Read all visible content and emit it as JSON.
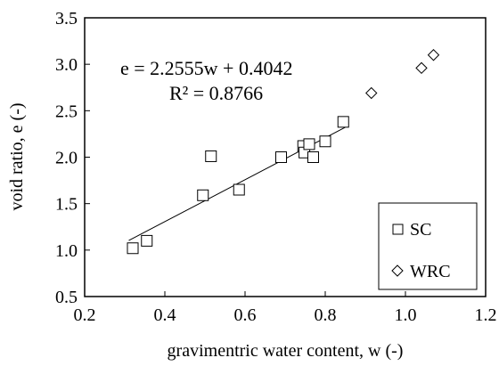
{
  "chart_data": {
    "type": "scatter",
    "title": "",
    "xlabel": "gravimentric water content, w (-)",
    "ylabel": "void ratio, e (-)",
    "xlim": [
      0.2,
      1.2
    ],
    "ylim": [
      0.5,
      3.5
    ],
    "x_ticks": [
      "0.2",
      "0.4",
      "0.6",
      "0.8",
      "1.0",
      "1.2"
    ],
    "y_ticks": [
      "0.5",
      "1.0",
      "1.5",
      "2.0",
      "2.5",
      "3.0",
      "3.5"
    ],
    "grid": false,
    "legend_position": "bottom-right",
    "series": [
      {
        "name": "SC",
        "marker": "square",
        "x": [
          0.32,
          0.355,
          0.495,
          0.515,
          0.585,
          0.69,
          0.745,
          0.748,
          0.76,
          0.77,
          0.8,
          0.845
        ],
        "y": [
          1.02,
          1.1,
          1.59,
          2.01,
          1.65,
          2.0,
          2.12,
          2.05,
          2.14,
          2.0,
          2.17,
          2.38
        ]
      },
      {
        "name": "WRC",
        "marker": "diamond",
        "x": [
          0.915,
          1.04,
          1.07
        ],
        "y": [
          2.69,
          2.96,
          3.1
        ]
      }
    ],
    "trendline": {
      "slope": 2.2555,
      "intercept": 0.4042,
      "x_range": [
        0.31,
        0.85
      ],
      "equation": "e = 2.2555w + 0.4042",
      "r2_text": "R² = 0.8766"
    }
  }
}
